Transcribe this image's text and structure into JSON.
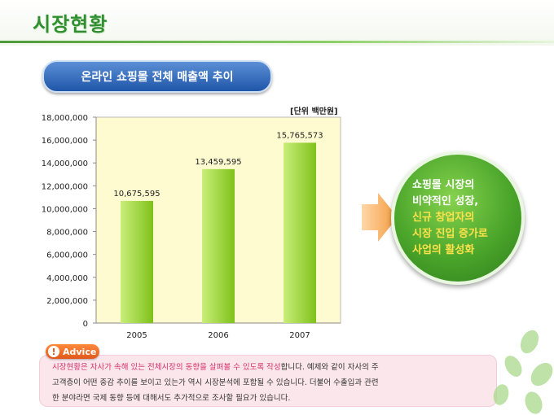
{
  "page": {
    "title": "시장현황",
    "subtitle": "온라인 쇼핑몰 전체 매출액 추이",
    "unit": "[단위 백만원]"
  },
  "chart_data": {
    "type": "bar",
    "categories": [
      "2005",
      "2006",
      "2007"
    ],
    "values": [
      10675595,
      13459595,
      15765573
    ],
    "value_labels": [
      "10,675,595",
      "13,459,595",
      "15,765,573"
    ],
    "y_ticks": [
      "0",
      "2,000,000",
      "4,000,000",
      "6,000,000",
      "8,000,000",
      "10,000,000",
      "12,000,000",
      "14,000,000",
      "16,000,000",
      "18,000,000"
    ],
    "ylim": [
      0,
      18000000
    ],
    "grid": false,
    "colors": {
      "bar_light": "#c9ee7a",
      "bar_dark": "#7fc21a",
      "plot_bg": "#fffbd0"
    }
  },
  "callout": {
    "line1": "쇼핑몰 시장의",
    "line2": "비약적인 성장,",
    "line3": "신규 창업자의",
    "line4": "시장 진입 증가로",
    "line5": "사업의 활성화",
    "colors": {
      "white_text": "#ffffff",
      "yellow_text": "#ffe14a"
    }
  },
  "advice": {
    "badge": "Advice",
    "icon": "exclamation-icon",
    "highlight": "시장현황은 자사가 속해 있는 전체시장의 동향을 살펴볼 수 있도록 작성",
    "line1_rest": "합니다. 예제와 같이 자사의 주",
    "line2": "고객층이 어떤 중감 추이를 보이고 있는가 역시 시장분석에 포함될 수 있습니다. 더불어 수출입과 관련",
    "line3": "한 분야라면 국제 동향 등에 대해서도 추가적으로 조사할 필요가 있습니다."
  }
}
